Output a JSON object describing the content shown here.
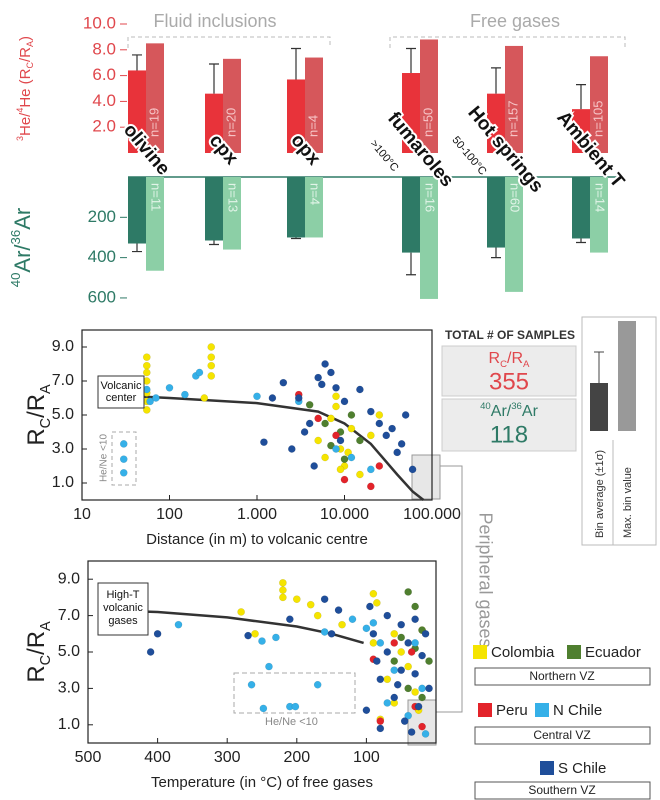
{
  "chart_data": [
    {
      "type": "bar",
      "y_label": [
        {
          "text": "3",
          "pos": "sup"
        },
        {
          "text": "He/"
        },
        {
          "text": "4",
          "pos": "sup"
        },
        {
          "text": "He (R"
        },
        {
          "text": "C",
          "pos": "sub"
        },
        {
          "text": "/R"
        },
        {
          "text": "A",
          "pos": "sub"
        },
        {
          "text": ")"
        }
      ],
      "label_color": "#e0474c",
      "groups": [
        "Fluid inclusions",
        "Free gases"
      ],
      "categories": [
        "olivine",
        "cpx",
        "opx",
        "fumaroles",
        "Hot springs",
        "Ambient T"
      ],
      "category_notes": [
        null,
        null,
        null,
        ">100°C",
        "50-100°C",
        null
      ],
      "series": [
        {
          "name": "Bin average (±1σ)",
          "color": "#e8333a",
          "values": [
            6.4,
            4.6,
            5.7,
            6.2,
            4.6,
            3.4
          ],
          "errors": [
            1.2,
            2.3,
            2.4,
            1.9,
            2.0,
            1.9
          ]
        },
        {
          "name": "Max. bin value",
          "color": "#d6575b",
          "values": [
            8.5,
            7.3,
            7.4,
            8.8,
            8.3,
            7.5
          ]
        }
      ],
      "n_labels": [
        "n=19",
        "n=20",
        "n=4",
        "n=50",
        "n=157",
        "n=105"
      ],
      "ylim": [
        0,
        10
      ],
      "yticks": [
        {
          "value": 2,
          "label": "2.0"
        },
        {
          "value": 4,
          "label": "4.0"
        },
        {
          "value": 6,
          "label": "6.0"
        },
        {
          "value": 8,
          "label": "8.0"
        },
        {
          "value": 10,
          "label": "10.0"
        }
      ]
    },
    {
      "type": "bar",
      "y_label": [
        {
          "text": "40",
          "pos": "sup"
        },
        {
          "text": "Ar/"
        },
        {
          "text": "36",
          "pos": "sup"
        },
        {
          "text": "Ar"
        }
      ],
      "label_color": "#2e7a66",
      "inverted": true,
      "series": [
        {
          "color": "#2e7a66",
          "values": [
            330,
            315,
            300,
            375,
            350,
            305
          ],
          "errors": [
            40,
            20,
            5,
            110,
            50,
            20
          ]
        },
        {
          "color": "#8ccfa6",
          "values": [
            465,
            360,
            300,
            605,
            570,
            375
          ]
        }
      ],
      "n_labels": [
        "n=11",
        "n=13",
        "n=4",
        "n=16",
        "n=60",
        "n=14"
      ],
      "ylim": [
        0,
        640
      ],
      "yticks": [
        200,
        400,
        600
      ]
    },
    {
      "type": "scatter",
      "x_label": "Distance (in m) to volcanic centre",
      "y_label": [
        {
          "text": "R"
        },
        {
          "text": "C",
          "pos": "sub"
        },
        {
          "text": "/R"
        },
        {
          "text": "A",
          "pos": "sub"
        }
      ],
      "xlog": true,
      "xlim": [
        10,
        100000
      ],
      "xticks": [
        10,
        100,
        {
          "value": 1000,
          "label": "1.000"
        },
        {
          "value": 10000,
          "label": "10.000"
        },
        {
          "value": 100000,
          "label": "100.000"
        }
      ],
      "ylim": [
        0,
        10
      ],
      "yticks": [
        {
          "value": 1,
          "label": "1.0"
        },
        {
          "value": 3,
          "label": "3.0"
        },
        {
          "value": 5,
          "label": "5.0"
        },
        {
          "value": 7,
          "label": "7.0"
        },
        {
          "value": 9,
          "label": "9.0"
        }
      ],
      "curve": {
        "color": "#333333",
        "x": [
          40,
          100,
          1000,
          5000,
          10000,
          20000,
          40000,
          60000,
          80000
        ],
        "y": [
          6.1,
          6.0,
          5.7,
          5.2,
          4.5,
          3.3,
          1.5,
          0.5,
          0.0
        ]
      },
      "center_label": [
        "Volcanic",
        "center"
      ],
      "hene_label": "He/Ne <10",
      "series": [
        {
          "color": "#f5e400",
          "x": [
            55,
            55,
            55,
            55,
            55,
            55,
            55,
            300,
            300,
            300,
            300,
            250,
            5000,
            6000,
            7000,
            8000,
            9000,
            10000,
            12000,
            15000,
            20000,
            25000,
            8000,
            9000,
            11000
          ],
          "y": [
            8.4,
            7.9,
            7.5,
            7.0,
            6.3,
            5.8,
            5.3,
            9.0,
            8.4,
            7.9,
            7.3,
            6.0,
            3.5,
            2.5,
            4.8,
            5.5,
            3.0,
            2.0,
            4.2,
            1.5,
            3.8,
            5.0,
            6.1,
            1.8,
            2.8
          ]
        },
        {
          "color": "#4f7f2f",
          "x": [
            4000,
            6000,
            7000,
            9000,
            10000,
            12000,
            15000
          ],
          "y": [
            5.6,
            4.5,
            3.2,
            4.0,
            2.4,
            5.0,
            3.5
          ]
        },
        {
          "color": "#e3232a",
          "x": [
            3000,
            5000,
            10000,
            20000,
            25000,
            8000
          ],
          "y": [
            6.2,
            4.8,
            1.2,
            0.8,
            2.0,
            3.8
          ]
        },
        {
          "color": "#35b0e8",
          "x": [
            55,
            60,
            30,
            30,
            30,
            70,
            100,
            150,
            200,
            220,
            1000,
            3000,
            8000,
            12000,
            20000
          ],
          "y": [
            6.5,
            5.8,
            3.3,
            2.4,
            1.6,
            6.0,
            6.6,
            6.2,
            7.3,
            7.5,
            6.1,
            5.8,
            3.0,
            2.5,
            1.8
          ]
        },
        {
          "color": "#1f4e9a",
          "x": [
            1500,
            2000,
            3000,
            4000,
            5000,
            5500,
            6000,
            7000,
            8000,
            9000,
            2500,
            3500,
            10000,
            15000,
            20000,
            25000,
            30000,
            35000,
            40000,
            45000,
            60000,
            50000,
            1200,
            4500
          ],
          "y": [
            6.0,
            6.9,
            6.0,
            4.5,
            7.2,
            6.8,
            8.0,
            7.5,
            6.6,
            3.5,
            3.0,
            4.0,
            5.8,
            6.5,
            5.2,
            4.5,
            3.8,
            4.2,
            2.8,
            3.3,
            1.8,
            5.0,
            3.4,
            2.0
          ]
        }
      ]
    },
    {
      "type": "scatter",
      "x_label": "Temperature (in °C) of free gases",
      "y_label": [
        {
          "text": "R"
        },
        {
          "text": "C",
          "pos": "sub"
        },
        {
          "text": "/R"
        },
        {
          "text": "A",
          "pos": "sub"
        }
      ],
      "xlim": [
        500,
        0
      ],
      "xticks": [
        500,
        400,
        300,
        200,
        100
      ],
      "ylim": [
        0,
        10
      ],
      "yticks": [
        {
          "value": 1,
          "label": "1.0"
        },
        {
          "value": 3,
          "label": "3.0"
        },
        {
          "value": 5,
          "label": "5.0"
        },
        {
          "value": 7,
          "label": "7.0"
        },
        {
          "value": 9,
          "label": "9.0"
        }
      ],
      "curve": {
        "color": "#333333",
        "x": [
          485,
          400,
          300,
          200,
          150,
          104
        ],
        "y": [
          7.3,
          7.2,
          6.9,
          6.4,
          6.0,
          5.5
        ]
      },
      "center_label": [
        "High-T",
        "volcanic",
        "gases"
      ],
      "hene_label": "He/Ne <10",
      "legend_groups": [
        "Northern VZ",
        "Central VZ",
        "Southern VZ"
      ],
      "series": [
        {
          "name": "Colombia",
          "color": "#f5e400",
          "x": [
            220,
            220,
            220,
            200,
            280,
            180,
            260,
            170,
            135,
            90,
            85,
            60,
            50,
            40,
            30,
            70,
            90,
            20,
            25,
            80,
            60
          ],
          "y": [
            8.8,
            8.4,
            8.0,
            7.9,
            7.2,
            7.6,
            6.0,
            7.0,
            6.5,
            8.2,
            7.7,
            6.0,
            5.0,
            4.2,
            2.8,
            3.5,
            5.5,
            6.2,
            1.8,
            1.3,
            2.2
          ]
        },
        {
          "name": "Ecuador",
          "color": "#4f7f2f",
          "x": [
            40,
            30,
            20,
            50,
            30,
            10,
            60,
            20,
            40
          ],
          "y": [
            8.3,
            7.5,
            6.2,
            5.8,
            5.2,
            4.5,
            4.5,
            2.5,
            3.0
          ]
        },
        {
          "name": "Peru",
          "color": "#e3232a",
          "x": [
            60,
            90,
            35,
            30,
            20,
            80
          ],
          "y": [
            5.5,
            4.6,
            5.0,
            2.0,
            0.9,
            1.2
          ]
        },
        {
          "name": "N Chile",
          "color": "#35b0e8",
          "x": [
            370,
            250,
            240,
            230,
            160,
            120,
            90,
            80,
            60,
            30,
            20,
            15,
            70,
            40,
            100,
            265,
            248,
            210,
            202,
            170
          ],
          "y": [
            6.5,
            5.6,
            4.2,
            5.8,
            6.1,
            6.8,
            6.6,
            5.5,
            4.0,
            5.5,
            3.0,
            0.5,
            2.2,
            1.5,
            6.3,
            3.2,
            1.9,
            2.0,
            2.0,
            3.2
          ]
        },
        {
          "name": "S Chile",
          "color": "#1f4e9a",
          "x": [
            400,
            410,
            270,
            210,
            160,
            150,
            140,
            95,
            90,
            85,
            80,
            70,
            70,
            60,
            50,
            50,
            45,
            40,
            30,
            30,
            25,
            20,
            15,
            10,
            100,
            80,
            55,
            35
          ],
          "y": [
            6.0,
            5.0,
            5.9,
            6.8,
            7.9,
            6.0,
            7.3,
            7.5,
            6.0,
            4.5,
            3.5,
            7.0,
            5.0,
            2.5,
            6.5,
            4.0,
            1.2,
            5.5,
            6.8,
            3.8,
            2.0,
            4.8,
            6.0,
            3.0,
            1.8,
            0.8,
            3.2,
            0.6
          ]
        }
      ]
    }
  ],
  "samples": {
    "title": "TOTAL # OF SAMPLES",
    "items": [
      {
        "label": [
          {
            "text": "R"
          },
          {
            "text": "C",
            "pos": "sub"
          },
          {
            "text": "/R"
          },
          {
            "text": "A",
            "pos": "sub"
          }
        ],
        "value": 355,
        "color": "#e0474c"
      },
      {
        "label": [
          {
            "text": "40",
            "pos": "sup"
          },
          {
            "text": "Ar/"
          },
          {
            "text": "36",
            "pos": "sup"
          },
          {
            "text": "Ar"
          }
        ],
        "value": 118,
        "color": "#2e7a66"
      }
    ]
  },
  "peripheral_label": "Peripheral gases"
}
